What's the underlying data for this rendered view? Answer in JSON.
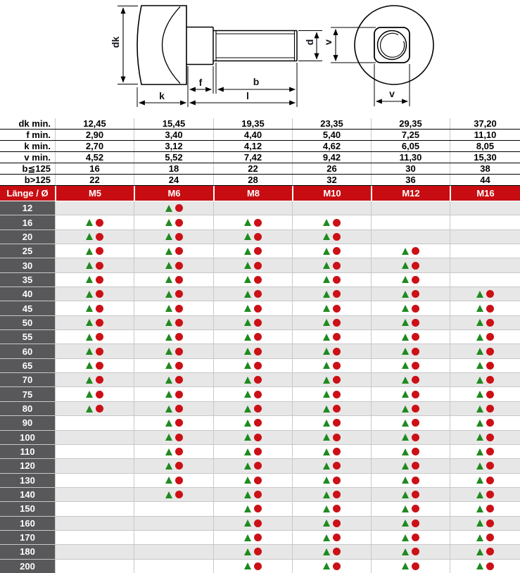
{
  "drawing": {
    "labels": {
      "dk": "dk",
      "f": "f",
      "k": "k",
      "b": "b",
      "l": "l",
      "d": "d",
      "v_side": "v",
      "v_bottom": "v"
    }
  },
  "spec_table": {
    "rows": [
      {
        "label": "dk min.",
        "values": [
          "12,45",
          "15,45",
          "19,35",
          "23,35",
          "29,35",
          "37,20"
        ]
      },
      {
        "label": "f min.",
        "values": [
          "2,90",
          "3,40",
          "4,40",
          "5,40",
          "7,25",
          "11,10"
        ]
      },
      {
        "label": "k min.",
        "values": [
          "2,70",
          "3,12",
          "4,12",
          "4,62",
          "6,05",
          "8,05"
        ]
      },
      {
        "label": "v min.",
        "values": [
          "4,52",
          "5,52",
          "7,42",
          "9,42",
          "11,30",
          "15,30"
        ]
      },
      {
        "label": "b≦125",
        "values": [
          "16",
          "18",
          "22",
          "26",
          "30",
          "38"
        ]
      },
      {
        "label": "b>125",
        "values": [
          "22",
          "24",
          "28",
          "32",
          "36",
          "44"
        ]
      }
    ]
  },
  "size_table": {
    "header_label": "Länge / Ø",
    "columns": [
      "M5",
      "M6",
      "M8",
      "M10",
      "M12",
      "M16"
    ],
    "markers": {
      "triangle_symbol": "▲",
      "circle_symbol": "●",
      "triangle_color": "#1f8a1f",
      "circle_color": "#cc1016"
    },
    "rows": [
      {
        "length": "12",
        "available": [
          0,
          1,
          0,
          0,
          0,
          0
        ]
      },
      {
        "length": "16",
        "available": [
          1,
          1,
          1,
          1,
          0,
          0
        ]
      },
      {
        "length": "20",
        "available": [
          1,
          1,
          1,
          1,
          0,
          0
        ]
      },
      {
        "length": "25",
        "available": [
          1,
          1,
          1,
          1,
          1,
          0
        ]
      },
      {
        "length": "30",
        "available": [
          1,
          1,
          1,
          1,
          1,
          0
        ]
      },
      {
        "length": "35",
        "available": [
          1,
          1,
          1,
          1,
          1,
          0
        ]
      },
      {
        "length": "40",
        "available": [
          1,
          1,
          1,
          1,
          1,
          1
        ]
      },
      {
        "length": "45",
        "available": [
          1,
          1,
          1,
          1,
          1,
          1
        ]
      },
      {
        "length": "50",
        "available": [
          1,
          1,
          1,
          1,
          1,
          1
        ]
      },
      {
        "length": "55",
        "available": [
          1,
          1,
          1,
          1,
          1,
          1
        ]
      },
      {
        "length": "60",
        "available": [
          1,
          1,
          1,
          1,
          1,
          1
        ]
      },
      {
        "length": "65",
        "available": [
          1,
          1,
          1,
          1,
          1,
          1
        ]
      },
      {
        "length": "70",
        "available": [
          1,
          1,
          1,
          1,
          1,
          1
        ]
      },
      {
        "length": "75",
        "available": [
          1,
          1,
          1,
          1,
          1,
          1
        ]
      },
      {
        "length": "80",
        "available": [
          1,
          1,
          1,
          1,
          1,
          1
        ]
      },
      {
        "length": "90",
        "available": [
          0,
          1,
          1,
          1,
          1,
          1
        ]
      },
      {
        "length": "100",
        "available": [
          0,
          1,
          1,
          1,
          1,
          1
        ]
      },
      {
        "length": "110",
        "available": [
          0,
          1,
          1,
          1,
          1,
          1
        ]
      },
      {
        "length": "120",
        "available": [
          0,
          1,
          1,
          1,
          1,
          1
        ]
      },
      {
        "length": "130",
        "available": [
          0,
          1,
          1,
          1,
          1,
          1
        ]
      },
      {
        "length": "140",
        "available": [
          0,
          1,
          1,
          1,
          1,
          1
        ]
      },
      {
        "length": "150",
        "available": [
          0,
          0,
          1,
          1,
          1,
          1
        ]
      },
      {
        "length": "160",
        "available": [
          0,
          0,
          1,
          1,
          1,
          1
        ]
      },
      {
        "length": "170",
        "available": [
          0,
          0,
          1,
          1,
          1,
          1
        ]
      },
      {
        "length": "180",
        "available": [
          0,
          0,
          1,
          1,
          1,
          1
        ]
      },
      {
        "length": "200",
        "available": [
          0,
          0,
          1,
          1,
          1,
          1
        ]
      }
    ]
  },
  "colors": {
    "accent_red": "#c80d12",
    "label_gray": "#58585a",
    "row_stripe": "#e7e7e7",
    "marker_green": "#1f8a1f",
    "marker_red": "#cc1016"
  }
}
